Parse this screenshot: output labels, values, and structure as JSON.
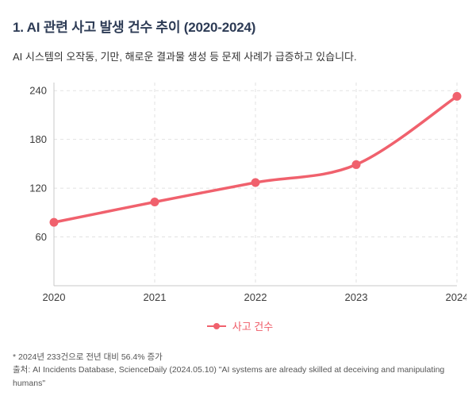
{
  "page": {
    "title": "1. AI 관련 사고 발생 건수 추이 (2020-2024)",
    "subtitle": "AI 시스템의 오작동, 기만, 해로운 결과물 생성 등 문제 사례가 급증하고 있습니다.",
    "footnote": "* 2024년 233건으로 전년 대비 56.4% 증가",
    "source": "출처: AI Incidents Database, ScienceDaily (2024.05.10) \"AI systems are already skilled at deceiving and manipulating humans\""
  },
  "chart_data": {
    "type": "line",
    "categories": [
      "2020",
      "2021",
      "2022",
      "2023",
      "2024"
    ],
    "series": [
      {
        "name": "사고 건수",
        "values": [
          78,
          103,
          127,
          149,
          233
        ]
      }
    ],
    "title": "",
    "xlabel": "",
    "ylabel": "",
    "yticks": [
      60,
      120,
      180,
      240
    ],
    "ylim": [
      0,
      250
    ],
    "grid": true,
    "legend_position": "bottom",
    "line_color": "#f0616d",
    "grid_color": "#e2e2e2",
    "axis_color": "#c9c9c9",
    "tick_color": "#3c3c3c"
  }
}
